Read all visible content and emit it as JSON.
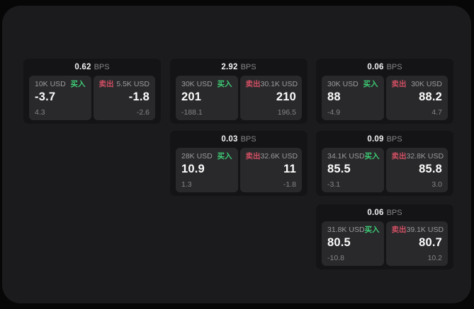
{
  "labels": {
    "bps_suffix": "BPS",
    "buy": "买入",
    "sell": "卖出"
  },
  "colors": {
    "buy_green": "#3ecb74",
    "sell_red": "#cf4f63",
    "surface_bg": "#1b1b1d",
    "card_bg": "#141416",
    "tile_bg": "#29292b",
    "text_primary": "#fcfcfd",
    "text_muted": "#85858a"
  },
  "cards": [
    {
      "bps": "0.62",
      "row": 1,
      "col": 1,
      "buy": {
        "size": "10K USD",
        "price": "-3.7",
        "delta": "4.3"
      },
      "sell": {
        "size": "5.5K USD",
        "price": "-1.8",
        "delta": "-2.6"
      }
    },
    {
      "bps": "2.92",
      "row": 1,
      "col": 2,
      "buy": {
        "size": "30K USD",
        "price": "201",
        "delta": "-188.1"
      },
      "sell": {
        "size": "30.1K USD",
        "price": "210",
        "delta": "196.5"
      }
    },
    {
      "bps": "0.06",
      "row": 1,
      "col": 3,
      "buy": {
        "size": "30K USD",
        "price": "88",
        "delta": "-4.9"
      },
      "sell": {
        "size": "30K USD",
        "price": "88.2",
        "delta": "4.7"
      }
    },
    {
      "bps": "0.03",
      "row": 2,
      "col": 2,
      "buy": {
        "size": "28K USD",
        "price": "10.9",
        "delta": "1.3"
      },
      "sell": {
        "size": "32.6K USD",
        "price": "11",
        "delta": "-1.8"
      }
    },
    {
      "bps": "0.09",
      "row": 2,
      "col": 3,
      "buy": {
        "size": "34.1K USD",
        "price": "85.5",
        "delta": "-3.1"
      },
      "sell": {
        "size": "32.8K USD",
        "price": "85.8",
        "delta": "3.0"
      }
    },
    {
      "bps": "0.06",
      "row": 3,
      "col": 3,
      "buy": {
        "size": "31.8K USD",
        "price": "80.5",
        "delta": "-10.8"
      },
      "sell": {
        "size": "39.1K USD",
        "price": "80.7",
        "delta": "10.2"
      }
    }
  ]
}
